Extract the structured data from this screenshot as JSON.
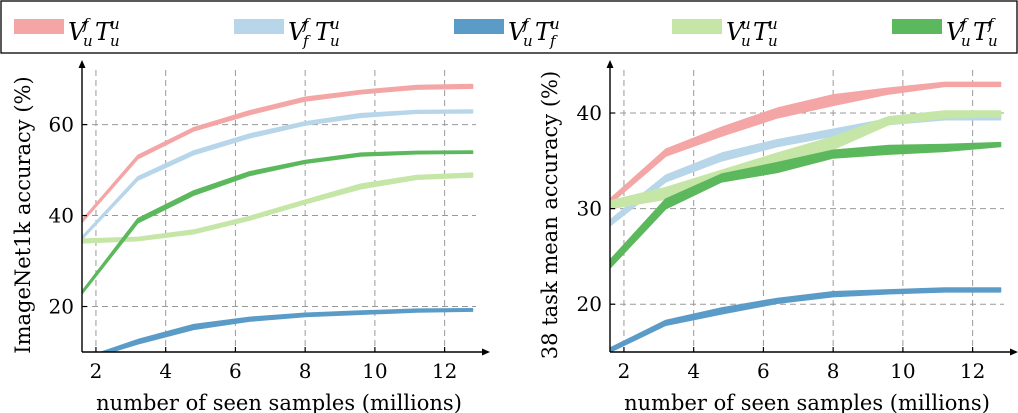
{
  "legend": [
    {
      "base": "V",
      "sup1": "f",
      "sub1": "u",
      "mid": "T",
      "sup2": "u",
      "sub2": "u",
      "color": "#f4a6a6"
    },
    {
      "base": "V",
      "sup1": "f",
      "sub1": "f",
      "mid": "T",
      "sup2": "u",
      "sub2": "u",
      "color": "#b7d6ea"
    },
    {
      "base": "V",
      "sup1": "f",
      "sub1": "u",
      "mid": "T",
      "sup2": "u",
      "sub2": "f",
      "color": "#5b9bc8"
    },
    {
      "base": "V",
      "sup1": "u",
      "sub1": "u",
      "mid": "T",
      "sup2": "u",
      "sub2": "u",
      "color": "#c5e6a6"
    },
    {
      "base": "V",
      "sup1": "f",
      "sub1": "u",
      "mid": "T",
      "sup2": "f",
      "sub2": "u",
      "color": "#5cb85c"
    }
  ],
  "chart_data": [
    {
      "type": "area",
      "xlabel": "number of seen samples (millions)",
      "ylabel": "ImageNet1k accuracy (%)",
      "xlim": [
        1.6,
        12.9
      ],
      "ylim": [
        10,
        72
      ],
      "xticks": [
        "2",
        "4",
        "6",
        "8",
        "10",
        "12"
      ],
      "yticks": [
        "20",
        "40",
        "60"
      ],
      "grid": true,
      "x": [
        1.6,
        3.2,
        4.8,
        6.4,
        8.0,
        9.6,
        11.2,
        12.8
      ],
      "series": [
        {
          "lo": [
            38.5,
            52.5,
            58.6,
            62.2,
            65.2,
            66.8,
            67.8,
            68.0
          ],
          "hi": [
            39.0,
            53.2,
            59.3,
            63.0,
            66.0,
            67.5,
            68.6,
            68.8
          ],
          "color": "#f4a6a6"
        },
        {
          "lo": [
            34.8,
            47.8,
            53.4,
            57.1,
            59.9,
            61.6,
            62.5,
            62.6
          ],
          "hi": [
            35.3,
            48.5,
            54.2,
            57.9,
            60.6,
            62.4,
            63.1,
            63.2
          ],
          "color": "#b7d6ea"
        },
        {
          "lo": [
            8.0,
            11.8,
            15.0,
            16.8,
            17.8,
            18.3,
            18.8,
            19.0
          ],
          "hi": [
            8.5,
            12.7,
            16.0,
            17.6,
            18.5,
            19.0,
            19.4,
            19.5
          ],
          "color": "#5b9bc8"
        },
        {
          "lo": [
            34.0,
            34.5,
            36.0,
            39.0,
            42.6,
            45.9,
            48.0,
            48.5
          ],
          "hi": [
            34.8,
            35.2,
            36.8,
            39.8,
            43.4,
            46.9,
            48.8,
            49.3
          ],
          "color": "#c5e6a6"
        },
        {
          "lo": [
            22.8,
            38.4,
            44.5,
            48.8,
            51.5,
            53.1,
            53.6,
            53.7
          ],
          "hi": [
            23.3,
            39.3,
            45.4,
            49.6,
            52.1,
            53.7,
            54.1,
            54.2
          ],
          "color": "#5cb85c"
        }
      ]
    },
    {
      "type": "area",
      "xlabel": "number of seen samples (millions)",
      "ylabel": "38 task mean accuracy (%)",
      "xlim": [
        1.6,
        12.9
      ],
      "ylim": [
        15,
        44.5
      ],
      "xticks": [
        "2",
        "4",
        "6",
        "8",
        "10",
        "12"
      ],
      "yticks": [
        "20",
        "30",
        "40"
      ],
      "grid": true,
      "x": [
        1.6,
        3.2,
        4.8,
        6.4,
        8.0,
        9.6,
        11.2,
        12.8
      ],
      "series": [
        {
          "lo": [
            30.5,
            35.5,
            37.6,
            39.5,
            40.8,
            42.0,
            42.8,
            42.8
          ],
          "hi": [
            31.0,
            36.2,
            38.5,
            40.5,
            41.9,
            42.6,
            43.2,
            43.2
          ],
          "color": "#f4a6a6"
        },
        {
          "lo": [
            28.2,
            32.8,
            35.0,
            36.5,
            37.6,
            38.8,
            39.3,
            39.3
          ],
          "hi": [
            28.8,
            33.5,
            35.8,
            37.2,
            38.3,
            39.4,
            39.8,
            39.8
          ],
          "color": "#b7d6ea"
        },
        {
          "lo": [
            15.0,
            17.8,
            19.0,
            20.1,
            20.8,
            21.1,
            21.3,
            21.3
          ],
          "hi": [
            15.4,
            18.3,
            19.6,
            20.6,
            21.3,
            21.5,
            21.7,
            21.7
          ],
          "color": "#5b9bc8"
        },
        {
          "lo": [
            30.0,
            31.0,
            32.8,
            34.5,
            36.2,
            38.8,
            39.5,
            39.6
          ],
          "hi": [
            30.8,
            32.2,
            34.0,
            35.8,
            37.5,
            39.6,
            40.2,
            40.2
          ],
          "color": "#c5e6a6"
        },
        {
          "lo": [
            23.8,
            30.0,
            32.8,
            33.8,
            35.3,
            35.7,
            36.0,
            36.5
          ],
          "hi": [
            24.6,
            31.0,
            33.6,
            34.8,
            36.1,
            36.6,
            36.7,
            36.9
          ],
          "color": "#5cb85c"
        }
      ]
    }
  ]
}
